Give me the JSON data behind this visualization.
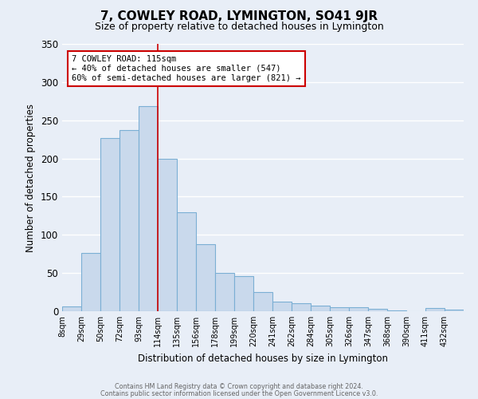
{
  "title": "7, COWLEY ROAD, LYMINGTON, SO41 9JR",
  "subtitle": "Size of property relative to detached houses in Lymington",
  "xlabel": "Distribution of detached houses by size in Lymington",
  "ylabel": "Number of detached properties",
  "bin_labels": [
    "8sqm",
    "29sqm",
    "50sqm",
    "72sqm",
    "93sqm",
    "114sqm",
    "135sqm",
    "156sqm",
    "178sqm",
    "199sqm",
    "220sqm",
    "241sqm",
    "262sqm",
    "284sqm",
    "305sqm",
    "326sqm",
    "347sqm",
    "368sqm",
    "390sqm",
    "411sqm",
    "432sqm"
  ],
  "bar_values": [
    6,
    76,
    227,
    237,
    268,
    200,
    130,
    88,
    50,
    46,
    25,
    13,
    10,
    7,
    5,
    5,
    3,
    1,
    0,
    4,
    2
  ],
  "bar_color": "#c9d9ec",
  "bar_edge_color": "#7bafd4",
  "vline_x": 5,
  "vline_color": "#cc0000",
  "ylim": [
    0,
    350
  ],
  "yticks": [
    0,
    50,
    100,
    150,
    200,
    250,
    300,
    350
  ],
  "annotation_title": "7 COWLEY ROAD: 115sqm",
  "annotation_line1": "← 40% of detached houses are smaller (547)",
  "annotation_line2": "60% of semi-detached houses are larger (821) →",
  "annotation_box_color": "#ffffff",
  "annotation_box_edge": "#cc0000",
  "footer1": "Contains HM Land Registry data © Crown copyright and database right 2024.",
  "footer2": "Contains public sector information licensed under the Open Government Licence v3.0.",
  "background_color": "#e8eef7",
  "plot_background": "#e8eef7",
  "grid_color": "#ffffff",
  "title_fontsize": 11,
  "subtitle_fontsize": 9
}
